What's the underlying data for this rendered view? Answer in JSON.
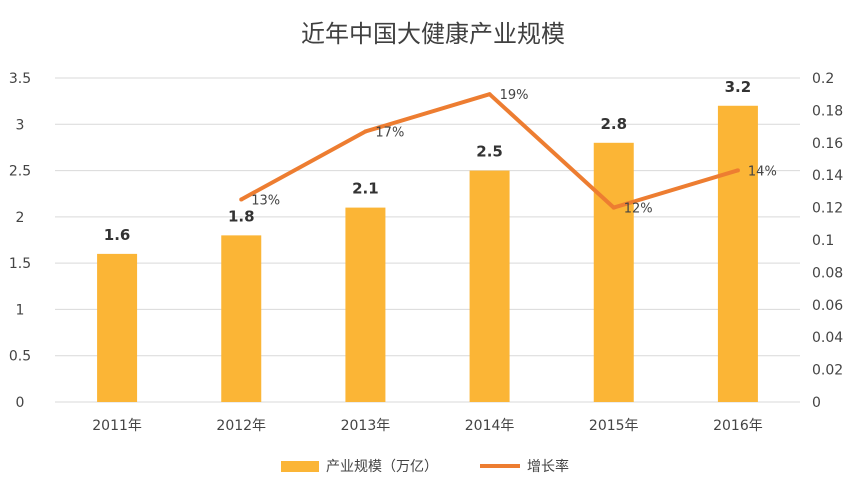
{
  "chart_data": {
    "type": "bar",
    "title": "近年中国大健康产业规模",
    "categories": [
      "2011年",
      "2012年",
      "2013年",
      "2014年",
      "2015年",
      "2016年"
    ],
    "series": [
      {
        "name": "产业规模（万亿）",
        "type": "bar",
        "axis": "left",
        "color": "#FBB536",
        "values": [
          1.6,
          1.8,
          2.1,
          2.5,
          2.8,
          3.2
        ],
        "labels": [
          "1.6",
          "1.8",
          "2.1",
          "2.5",
          "2.8",
          "3.2"
        ]
      },
      {
        "name": "增长率",
        "type": "line",
        "axis": "right",
        "color": "#ED7D31",
        "values": [
          null,
          0.125,
          0.167,
          0.19,
          0.12,
          0.143
        ],
        "labels": [
          "",
          "13%",
          "17%",
          "19%",
          "12%",
          "14%"
        ]
      }
    ],
    "y_left": {
      "range": [
        0,
        3.5
      ],
      "ticks": [
        "0",
        "0.5",
        "1",
        "1.5",
        "2",
        "2.5",
        "3",
        "3.5"
      ]
    },
    "y_right": {
      "range": [
        0,
        0.2
      ],
      "ticks": [
        "0",
        "0.02",
        "0.04",
        "0.06",
        "0.08",
        "0.1",
        "0.12",
        "0.14",
        "0.16",
        "0.18",
        "0.2"
      ]
    },
    "grid": true,
    "legend": "bottom"
  }
}
